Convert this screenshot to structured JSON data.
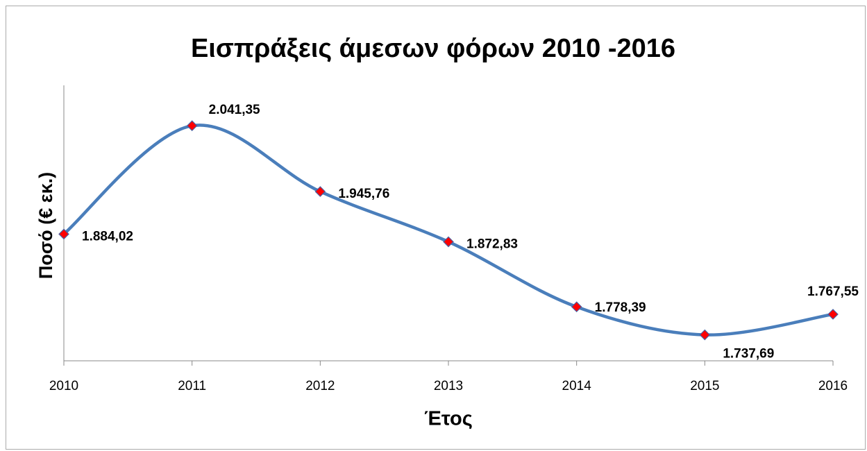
{
  "chart_data": {
    "type": "line",
    "title": "Εισπράξεις άμεσων φόρων 2010 -2016",
    "x_label": "Έτος",
    "y_label": "Ποσό (€ εκ.)",
    "categories": [
      "2010",
      "2011",
      "2012",
      "2013",
      "2014",
      "2015",
      "2016"
    ],
    "series": [
      {
        "name": "Εισπράξεις",
        "color": "#4a7ebb",
        "marker_color": "#ff0000",
        "values": [
          1884.02,
          2041.35,
          1945.76,
          1872.83,
          1778.39,
          1737.69,
          1767.55
        ],
        "value_labels": [
          "1.884,02",
          "2.041,35",
          "1.945,76",
          "1.872,83",
          "1.778,39",
          "1.737,69",
          "1.767,55"
        ]
      }
    ],
    "ylim": [
      1700,
      2100
    ],
    "smooth": true
  }
}
